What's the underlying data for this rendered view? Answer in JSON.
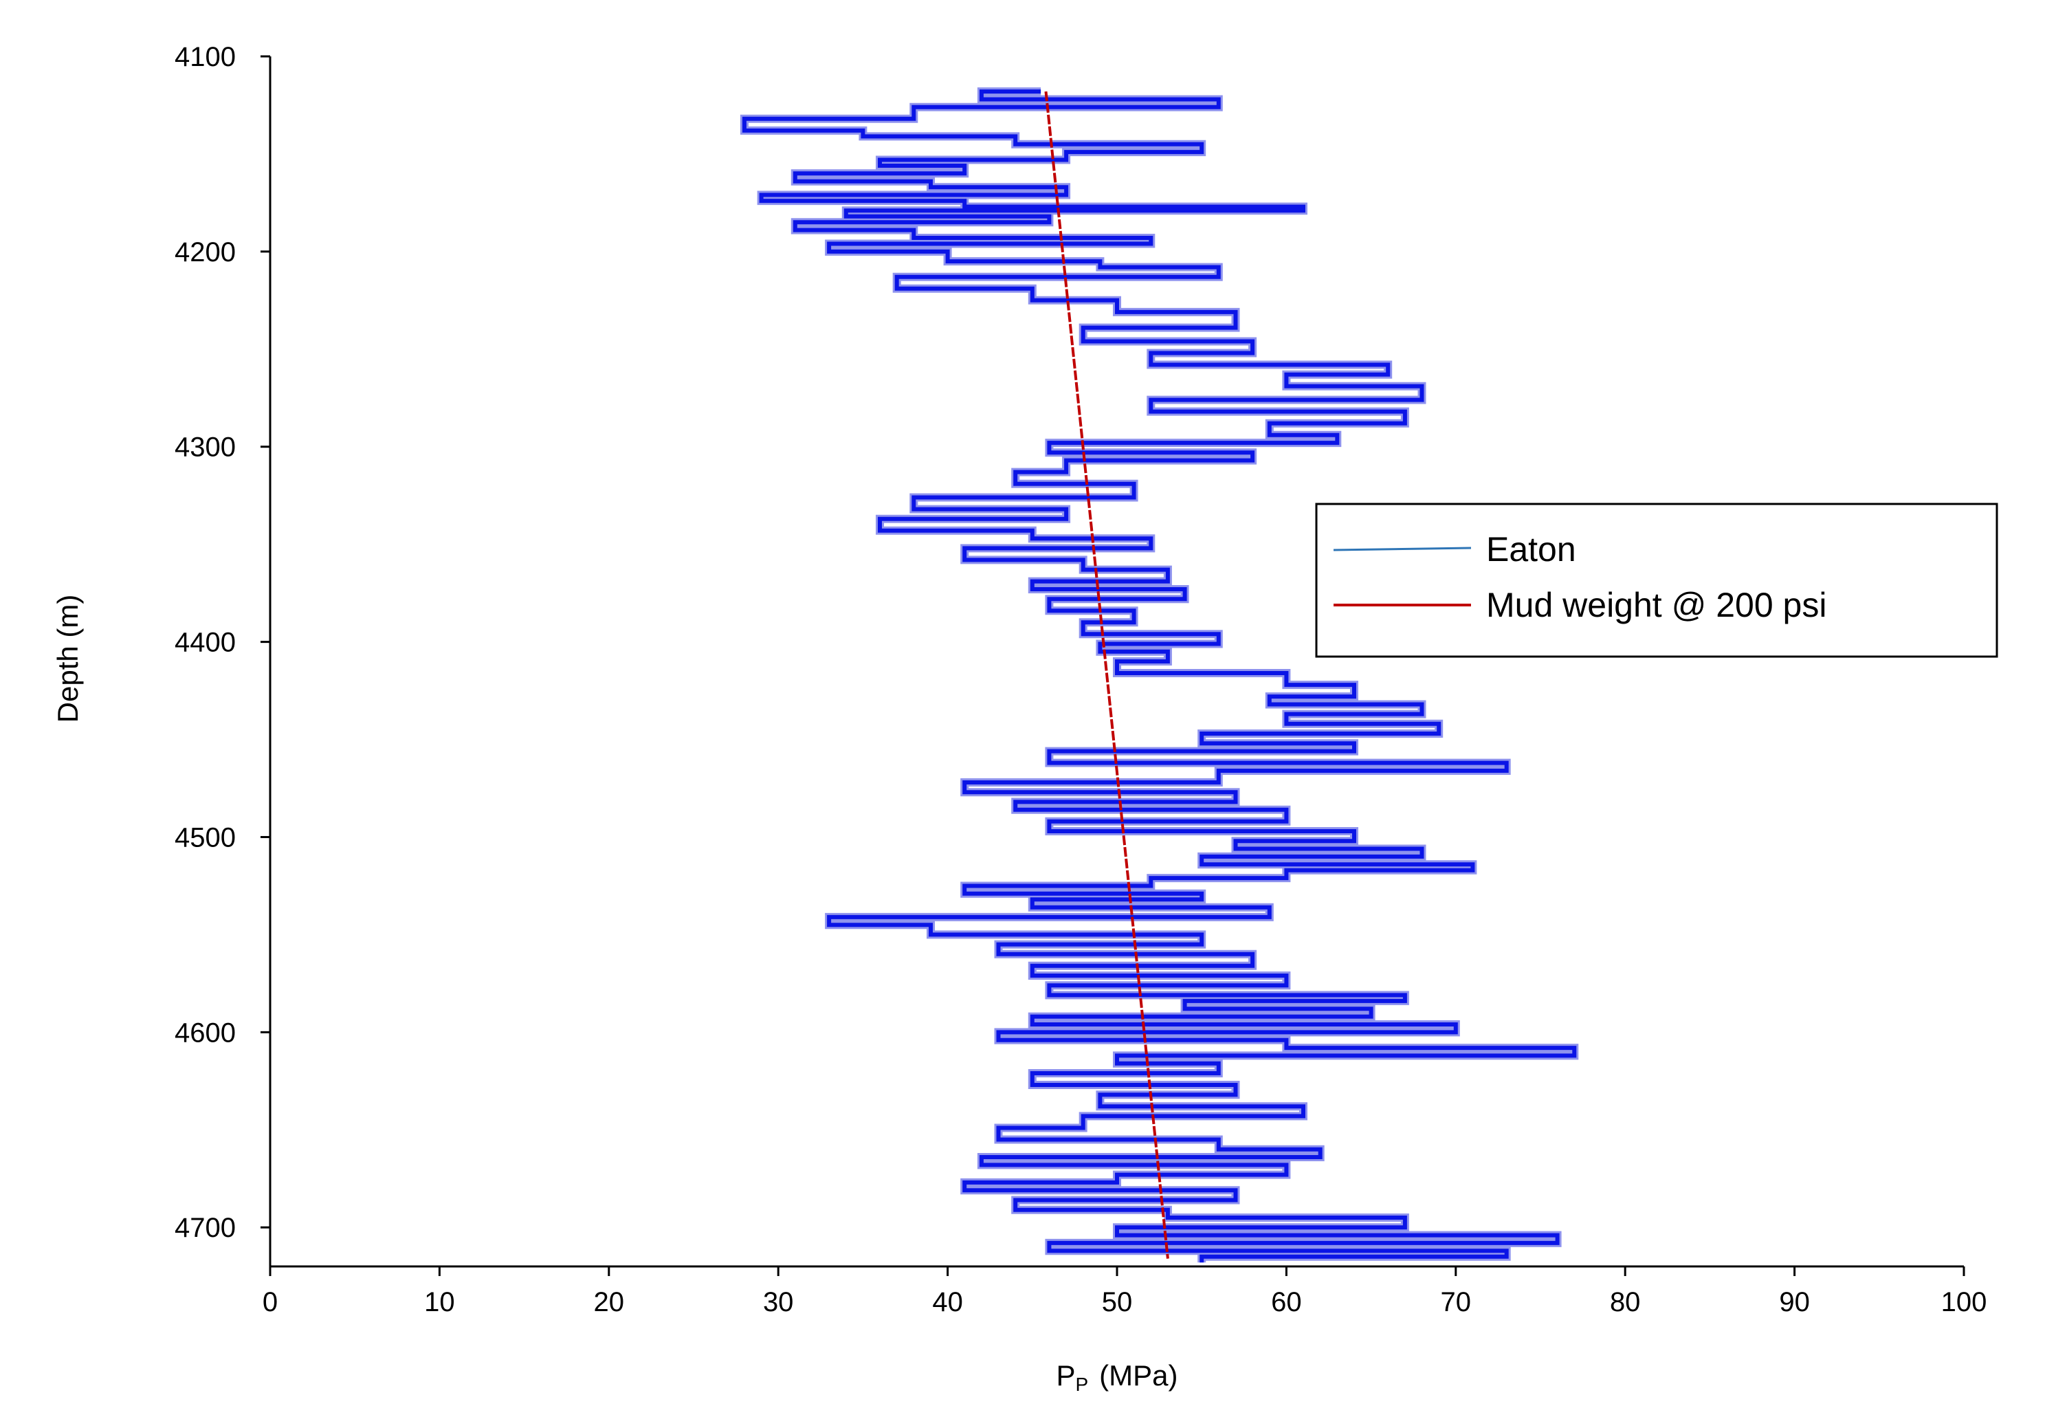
{
  "chart_data": {
    "type": "line",
    "xlabel": "P",
    "xlabel_sub": "P",
    "xlabel_unit": "(MPa)",
    "ylabel": "Depth (m)",
    "xlim": [
      0,
      100
    ],
    "ylim": [
      4100,
      4720
    ],
    "y_inverted": true,
    "x_ticks": [
      0,
      10,
      20,
      30,
      40,
      50,
      60,
      70,
      80,
      90,
      100
    ],
    "y_ticks": [
      4100,
      4200,
      4300,
      4400,
      4500,
      4600,
      4700
    ],
    "grid": false,
    "legend_position": "right",
    "series": [
      {
        "name": "Eaton",
        "color": "#0a14e6",
        "legend_color": "#2e75b6",
        "style": "noisy-log",
        "points": [
          [
            45.5,
            4118
          ],
          [
            42,
            4122
          ],
          [
            56,
            4126
          ],
          [
            38,
            4132
          ],
          [
            28,
            4138
          ],
          [
            35,
            4141
          ],
          [
            44,
            4145
          ],
          [
            55,
            4149
          ],
          [
            47,
            4153
          ],
          [
            36,
            4156
          ],
          [
            41,
            4160
          ],
          [
            31,
            4164
          ],
          [
            39,
            4167
          ],
          [
            47,
            4171
          ],
          [
            29,
            4174
          ],
          [
            41,
            4177
          ],
          [
            61,
            4179
          ],
          [
            34,
            4182
          ],
          [
            46,
            4185
          ],
          [
            31,
            4189
          ],
          [
            38,
            4193
          ],
          [
            52,
            4196
          ],
          [
            33,
            4200
          ],
          [
            40,
            4205
          ],
          [
            49,
            4208
          ],
          [
            56,
            4213
          ],
          [
            37,
            4219
          ],
          [
            45,
            4225
          ],
          [
            50,
            4231
          ],
          [
            57,
            4239
          ],
          [
            48,
            4246
          ],
          [
            58,
            4252
          ],
          [
            52,
            4258
          ],
          [
            66,
            4263
          ],
          [
            60,
            4269
          ],
          [
            68,
            4276
          ],
          [
            52,
            4282
          ],
          [
            67,
            4288
          ],
          [
            59,
            4294
          ],
          [
            63,
            4298
          ],
          [
            46,
            4303
          ],
          [
            58,
            4307
          ],
          [
            47,
            4313
          ],
          [
            44,
            4319
          ],
          [
            51,
            4326
          ],
          [
            38,
            4332
          ],
          [
            47,
            4337
          ],
          [
            36,
            4343
          ],
          [
            45,
            4347
          ],
          [
            52,
            4352
          ],
          [
            41,
            4358
          ],
          [
            48,
            4363
          ],
          [
            53,
            4369
          ],
          [
            45,
            4373
          ],
          [
            54,
            4378
          ],
          [
            46,
            4384
          ],
          [
            51,
            4390
          ],
          [
            48,
            4396
          ],
          [
            56,
            4401
          ],
          [
            49,
            4405
          ],
          [
            53,
            4410
          ],
          [
            50,
            4416
          ],
          [
            60,
            4422
          ],
          [
            64,
            4428
          ],
          [
            59,
            4432
          ],
          [
            68,
            4437
          ],
          [
            60,
            4442
          ],
          [
            69,
            4447
          ],
          [
            55,
            4452
          ],
          [
            64,
            4456
          ],
          [
            46,
            4462
          ],
          [
            73,
            4466
          ],
          [
            56,
            4472
          ],
          [
            41,
            4477
          ],
          [
            57,
            4482
          ],
          [
            44,
            4486
          ],
          [
            60,
            4492
          ],
          [
            46,
            4497
          ],
          [
            64,
            4502
          ],
          [
            57,
            4506
          ],
          [
            68,
            4510
          ],
          [
            55,
            4514
          ],
          [
            71,
            4517
          ],
          [
            60,
            4521
          ],
          [
            52,
            4525
          ],
          [
            41,
            4529
          ],
          [
            55,
            4532
          ],
          [
            45,
            4536
          ],
          [
            59,
            4541
          ],
          [
            33,
            4545
          ],
          [
            39,
            4550
          ],
          [
            55,
            4555
          ],
          [
            43,
            4560
          ],
          [
            58,
            4566
          ],
          [
            45,
            4571
          ],
          [
            60,
            4576
          ],
          [
            46,
            4581
          ],
          [
            67,
            4584
          ],
          [
            54,
            4588
          ],
          [
            65,
            4592
          ],
          [
            45,
            4596
          ],
          [
            70,
            4600
          ],
          [
            43,
            4604
          ],
          [
            60,
            4608
          ],
          [
            77,
            4612
          ],
          [
            50,
            4616
          ],
          [
            56,
            4621
          ],
          [
            45,
            4627
          ],
          [
            57,
            4632
          ],
          [
            49,
            4638
          ],
          [
            61,
            4643
          ],
          [
            48,
            4649
          ],
          [
            43,
            4655
          ],
          [
            56,
            4660
          ],
          [
            62,
            4664
          ],
          [
            42,
            4668
          ],
          [
            60,
            4673
          ],
          [
            50,
            4677
          ],
          [
            41,
            4681
          ],
          [
            57,
            4686
          ],
          [
            44,
            4691
          ],
          [
            53,
            4695
          ],
          [
            67,
            4700
          ],
          [
            50,
            4704
          ],
          [
            76,
            4708
          ],
          [
            46,
            4712
          ],
          [
            73,
            4715
          ],
          [
            55,
            4718
          ]
        ]
      },
      {
        "name": "Mud weight @ 200 psi",
        "color": "#c00000",
        "points": [
          [
            45.8,
            4118
          ],
          [
            53.0,
            4716
          ]
        ]
      }
    ]
  }
}
